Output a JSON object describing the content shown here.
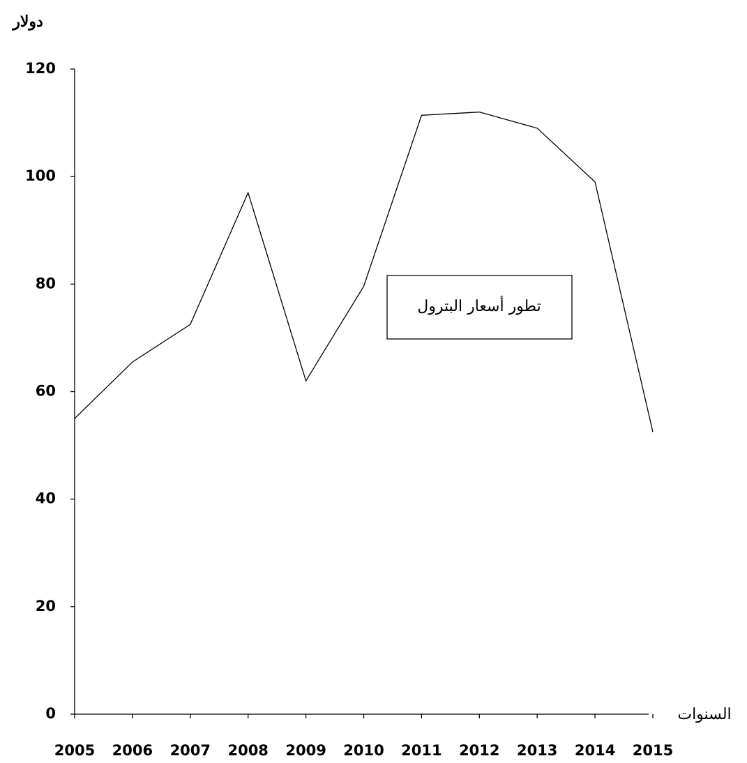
{
  "chart_data": {
    "type": "line",
    "ylabel": "دولار",
    "xlabel": "السنوات",
    "annotation": "تطور أسعار البترول",
    "x": [
      2005,
      2006,
      2007,
      2008,
      2009,
      2010,
      2011,
      2012,
      2013,
      2014,
      2015
    ],
    "series": [
      {
        "color": "#000000",
        "values": [
          55,
          65.5,
          72.5,
          97,
          62,
          79.6,
          111.4,
          112,
          109,
          99,
          52.5
        ]
      }
    ],
    "xlim": [
      2005,
      2015
    ],
    "xticks": [
      2005,
      2006,
      2007,
      2008,
      2009,
      2010,
      2011,
      2012,
      2013,
      2014,
      2015
    ],
    "ylim": [
      0,
      120
    ],
    "yticks": [
      0,
      20,
      40,
      60,
      80,
      100,
      120
    ]
  }
}
